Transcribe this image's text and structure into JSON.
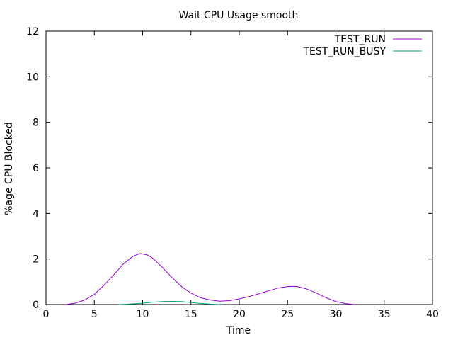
{
  "chart_data": {
    "type": "line",
    "title": "Wait CPU Usage smooth",
    "xlabel": "Time",
    "ylabel": "%age CPU Blocked",
    "xlim": [
      0,
      40
    ],
    "ylim": [
      0,
      12
    ],
    "xticks": [
      0,
      5,
      10,
      15,
      20,
      25,
      30,
      35,
      40
    ],
    "yticks": [
      0,
      2,
      4,
      6,
      8,
      10,
      12
    ],
    "grid": false,
    "legend_position": "top-right",
    "series": [
      {
        "name": "TEST_RUN",
        "color": "#9400d3",
        "x": [
          2,
          3,
          4,
          5,
          6,
          7,
          8,
          9,
          9.7,
          10.5,
          11,
          12,
          13,
          14,
          15,
          16,
          17,
          18,
          19,
          20,
          21,
          22,
          23,
          24,
          25,
          25.5,
          26,
          27,
          28,
          29,
          30,
          31,
          32
        ],
        "y": [
          0.0,
          0.06,
          0.2,
          0.45,
          0.85,
          1.3,
          1.78,
          2.12,
          2.24,
          2.18,
          2.05,
          1.65,
          1.2,
          0.8,
          0.5,
          0.3,
          0.2,
          0.15,
          0.17,
          0.25,
          0.35,
          0.47,
          0.6,
          0.72,
          0.79,
          0.8,
          0.79,
          0.68,
          0.5,
          0.3,
          0.13,
          0.04,
          0.0
        ]
      },
      {
        "name": "TEST_RUN_BUSY",
        "color": "#009e73",
        "x": [
          7.5,
          8,
          9,
          10,
          11,
          12,
          13,
          14,
          15,
          16,
          17,
          18
        ],
        "y": [
          0.0,
          0.01,
          0.03,
          0.06,
          0.1,
          0.13,
          0.14,
          0.13,
          0.09,
          0.05,
          0.02,
          0.0
        ]
      }
    ]
  }
}
